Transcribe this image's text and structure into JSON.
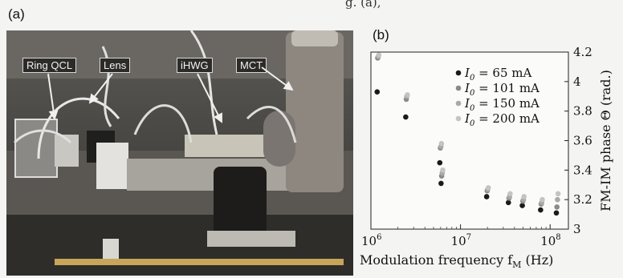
{
  "top_clip_text": "g. (a),",
  "panel_a": {
    "label": "(a)",
    "callouts": [
      "Ring QCL",
      "Lens",
      "iHWG",
      "MCT"
    ]
  },
  "panel_b": {
    "label": "(b)"
  },
  "chart_data": {
    "type": "scatter",
    "title": "",
    "xlabel": "Modulation frequency f_M (Hz)",
    "ylabel": "FM-IM phase Θ (rad.)",
    "x_scale": "log",
    "xlim": [
      1000000,
      160000000
    ],
    "ylim": [
      3.0,
      4.2
    ],
    "x_ticks": [
      {
        "value": 1000000,
        "label": "10^6"
      },
      {
        "value": 10000000,
        "label": "10^7"
      },
      {
        "value": 100000000,
        "label": "10^8"
      }
    ],
    "y_ticks": [
      3,
      3.2,
      3.4,
      3.6,
      3.8,
      4,
      4.2
    ],
    "y_tick_labels": [
      "3",
      "3.2",
      "3.4",
      "3.6",
      "3.8",
      "4",
      "4.2"
    ],
    "axis_side": "right",
    "legend_placement": "top-right",
    "series": [
      {
        "name": "I_0 = 65 mA",
        "color": "#1a1a1a",
        "x": [
          1200000,
          2500000,
          6000000,
          6200000,
          20000000,
          35000000,
          50000000,
          80000000,
          120000000
        ],
        "y": [
          3.93,
          3.76,
          3.45,
          3.31,
          3.22,
          3.18,
          3.16,
          3.13,
          3.11
        ]
      },
      {
        "name": "I_0 = 101 mA",
        "color": "#8a8a8a",
        "x": [
          1200000,
          2500000,
          6000000,
          6200000,
          20000000,
          35000000,
          50000000,
          80000000,
          120000000
        ],
        "y": [
          4.16,
          3.88,
          3.55,
          3.36,
          3.26,
          3.21,
          3.19,
          3.17,
          3.15
        ]
      },
      {
        "name": "I_0 = 150 mA",
        "color": "#a9a9a9",
        "x": [
          1200000,
          2500000,
          6000000,
          6200000,
          20000000,
          35000000,
          50000000,
          80000000,
          120000000
        ],
        "y": [
          4.17,
          3.9,
          3.56,
          3.38,
          3.27,
          3.22,
          3.2,
          3.18,
          3.2
        ]
      },
      {
        "name": "I_0 = 200 mA",
        "color": "#c4c4c4",
        "x": [
          1200000,
          2500000,
          6000000,
          6200000,
          20000000,
          35000000,
          50000000,
          80000000,
          120000000
        ],
        "y": [
          4.18,
          3.91,
          3.58,
          3.4,
          3.28,
          3.24,
          3.22,
          3.2,
          3.24
        ]
      }
    ]
  }
}
